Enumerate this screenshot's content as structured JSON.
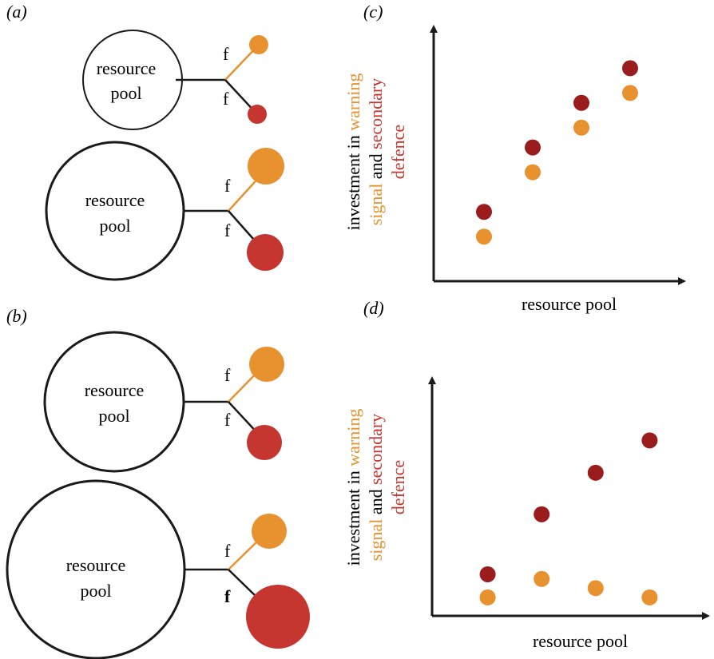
{
  "colors": {
    "warning_signal": "#E8912F",
    "secondary_defence": "#C4362F",
    "secondary_defence_dark": "#9B1C1C",
    "line": "#1a1a1a",
    "text": "#000000"
  },
  "panels": {
    "a": {
      "label": "(a)",
      "top": {
        "pool_label_line1": "resource",
        "pool_label_line2": "pool",
        "f_upper": "f",
        "f_lower": "f"
      },
      "bottom": {
        "pool_label_line1": "resource",
        "pool_label_line2": "pool",
        "f_upper": "f",
        "f_lower": "f"
      }
    },
    "b": {
      "label": "(b)",
      "top": {
        "pool_label_line1": "resource",
        "pool_label_line2": "pool",
        "f_upper": "f",
        "f_lower": "f"
      },
      "bottom": {
        "pool_label_line1": "resource",
        "pool_label_line2": "pool",
        "f_upper": "f",
        "f_lower": "f"
      }
    },
    "c": {
      "label": "(c)"
    },
    "d": {
      "label": "(d)"
    }
  },
  "chart_data": [
    {
      "type": "scatter",
      "panel": "c",
      "xlabel": "resource pool",
      "ylabel_parts": [
        {
          "line": 1,
          "text": "investment in ",
          "color": "#000000"
        },
        {
          "line": 1,
          "text": "warning",
          "color": "#E8912F"
        },
        {
          "line": 2,
          "text": "signal",
          "color": "#E8912F"
        },
        {
          "line": 2,
          "text": " and ",
          "color": "#000000"
        },
        {
          "line": 2,
          "text": "secondary",
          "color": "#C4362F"
        },
        {
          "line": 3,
          "text": "defence",
          "color": "#C4362F"
        }
      ],
      "xlim": [
        0,
        5
      ],
      "ylim": [
        0,
        5
      ],
      "series": [
        {
          "values_x": [
            1,
            2,
            3,
            4
          ],
          "values_y": [
            1.4,
            2.7,
            3.6,
            4.3
          ],
          "color": "#9B1C1C"
        },
        {
          "values_x": [
            1,
            2,
            3,
            4
          ],
          "values_y": [
            0.9,
            2.2,
            3.1,
            3.8
          ],
          "color": "#E8912F"
        }
      ]
    },
    {
      "type": "scatter",
      "panel": "d",
      "xlabel": "resource pool",
      "ylabel_parts": [
        {
          "line": 1,
          "text": "investment in ",
          "color": "#000000"
        },
        {
          "line": 1,
          "text": "warning",
          "color": "#E8912F"
        },
        {
          "line": 2,
          "text": "signal",
          "color": "#E8912F"
        },
        {
          "line": 2,
          "text": " and ",
          "color": "#000000"
        },
        {
          "line": 2,
          "text": "secondary",
          "color": "#C4362F"
        },
        {
          "line": 3,
          "text": "defence",
          "color": "#C4362F"
        }
      ],
      "xlim": [
        0,
        5
      ],
      "ylim": [
        0,
        5
      ],
      "series": [
        {
          "values_x": [
            1,
            2,
            3,
            4
          ],
          "values_y": [
            0.9,
            2.2,
            3.1,
            3.8
          ],
          "color": "#9B1C1C"
        },
        {
          "values_x": [
            1,
            2,
            3,
            4
          ],
          "values_y": [
            0.4,
            0.8,
            0.6,
            0.4
          ],
          "color": "#E8912F"
        }
      ]
    }
  ]
}
